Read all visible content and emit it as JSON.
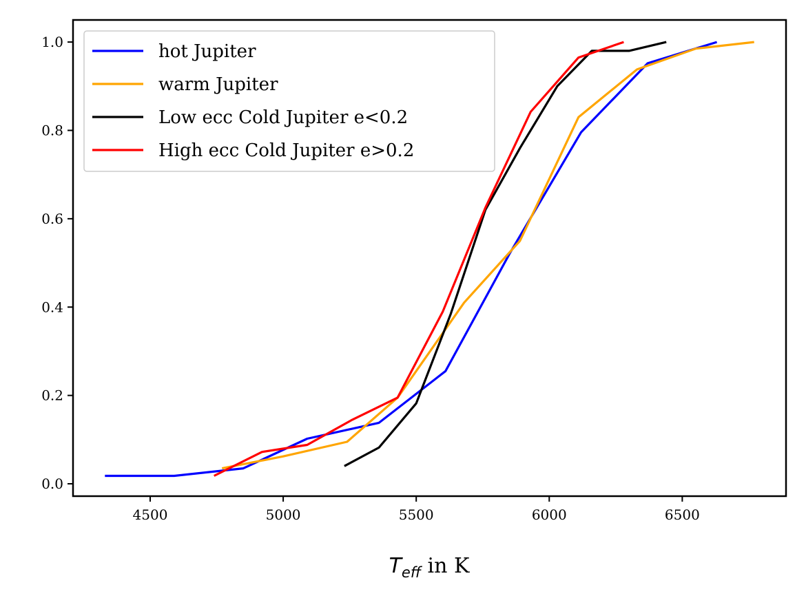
{
  "chart_data": {
    "type": "line",
    "title": "",
    "xlabel_main": "T",
    "xlabel_sub": "eff",
    "xlabel_rest": " in K",
    "ylabel": "",
    "xlim": [
      4210,
      6890
    ],
    "ylim": [
      -0.028,
      1.05
    ],
    "xticks": [
      4500,
      5000,
      5500,
      6000,
      6500
    ],
    "yticks": [
      0.0,
      0.2,
      0.4,
      0.6,
      0.8,
      1.0
    ],
    "xtick_labels": [
      "4500",
      "5000",
      "5500",
      "6000",
      "6500"
    ],
    "ytick_labels": [
      "0.0",
      "0.2",
      "0.4",
      "0.6",
      "0.8",
      "1.0"
    ],
    "grid": false,
    "legend_position": "upper-left",
    "series": [
      {
        "name": "hot Jupiter",
        "color": "#0000ff",
        "x": [
          4330,
          4590,
          4850,
          5090,
          5360,
          5610,
          5850,
          6120,
          6370,
          6630
        ],
        "y": [
          0.018,
          0.018,
          0.035,
          0.102,
          0.138,
          0.255,
          0.52,
          0.796,
          0.952,
          1.0
        ]
      },
      {
        "name": "warm Jupiter",
        "color": "#ffa500",
        "x": [
          4770,
          5000,
          5240,
          5430,
          5680,
          5890,
          6110,
          6330,
          6550,
          6770
        ],
        "y": [
          0.035,
          0.062,
          0.095,
          0.195,
          0.41,
          0.55,
          0.83,
          0.938,
          0.985,
          1.0
        ]
      },
      {
        "name": "Low ecc Cold Jupiter e<0.2",
        "color": "#000000",
        "x": [
          5230,
          5360,
          5500,
          5630,
          5760,
          5890,
          6030,
          6160,
          6300,
          6440
        ],
        "y": [
          0.04,
          0.082,
          0.182,
          0.385,
          0.62,
          0.76,
          0.9,
          0.98,
          0.98,
          1.0
        ]
      },
      {
        "name": "High ecc Cold Jupiter e>0.2",
        "color": "#ff0000",
        "x": [
          4740,
          4920,
          5090,
          5260,
          5430,
          5600,
          5760,
          5930,
          6110,
          6280
        ],
        "y": [
          0.018,
          0.072,
          0.088,
          0.145,
          0.195,
          0.39,
          0.625,
          0.842,
          0.965,
          1.0
        ]
      }
    ]
  }
}
